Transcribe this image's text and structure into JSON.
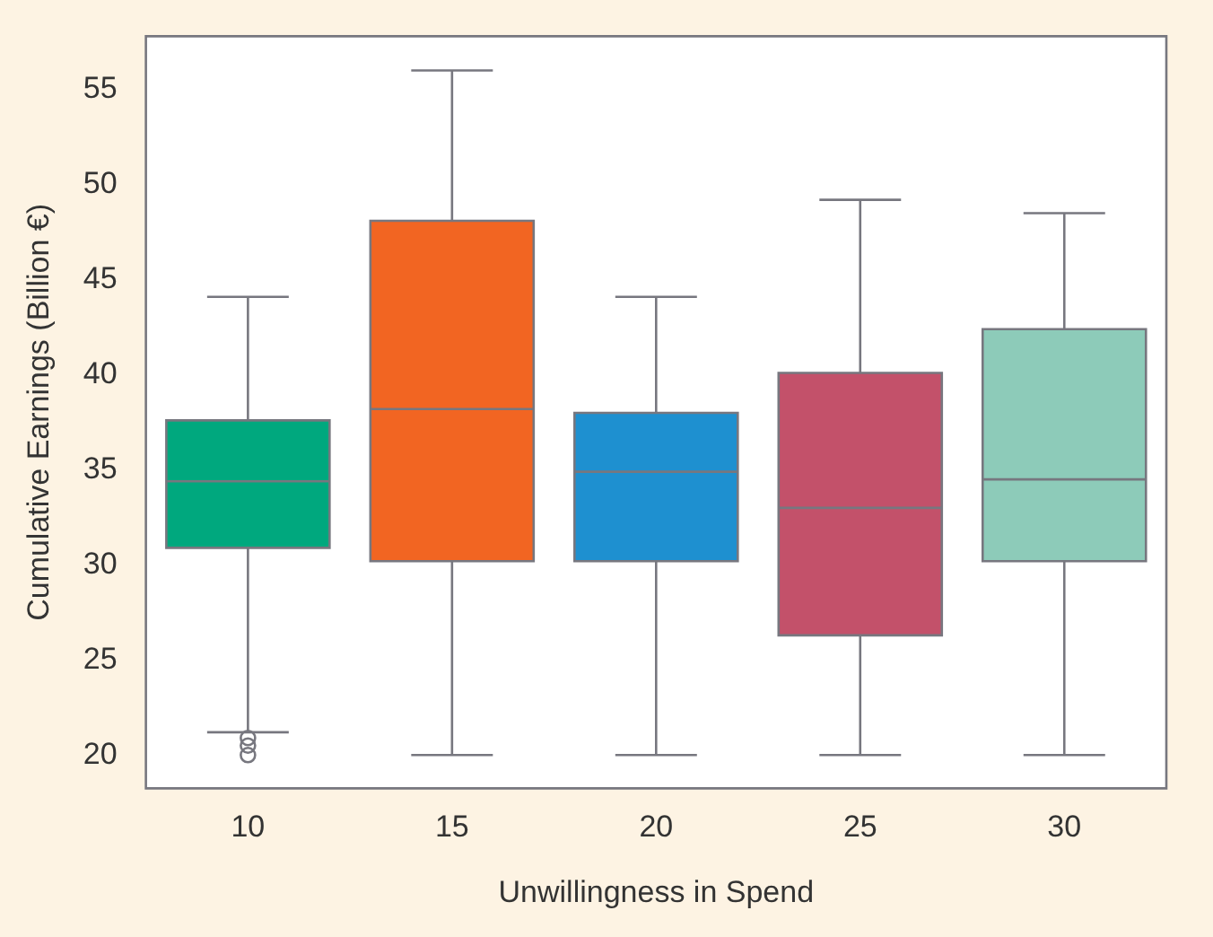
{
  "chart_data": {
    "type": "box",
    "xlabel": "Unwillingness in Spend",
    "ylabel": "Cumulative Earnings (Billion €)",
    "categories": [
      "10",
      "15",
      "20",
      "25",
      "30"
    ],
    "colors": [
      "#00a87e",
      "#f26522",
      "#1e90d0",
      "#c3516a",
      "#8dcbb9"
    ],
    "boxes": [
      {
        "low": 21.2,
        "q1": 30.9,
        "median": 34.4,
        "q3": 37.6,
        "high": 44.1,
        "outliers": [
          20.9,
          20.5,
          20.0
        ]
      },
      {
        "low": 20.0,
        "q1": 30.2,
        "median": 38.2,
        "q3": 48.1,
        "high": 56.0
      },
      {
        "low": 20.0,
        "q1": 30.2,
        "median": 34.9,
        "q3": 38.0,
        "high": 44.1
      },
      {
        "low": 20.0,
        "q1": 26.3,
        "median": 33.0,
        "q3": 40.1,
        "high": 49.2
      },
      {
        "low": 20.0,
        "q1": 30.2,
        "median": 34.5,
        "q3": 42.4,
        "high": 48.5
      }
    ],
    "ylim": [
      18.25,
      57.8
    ],
    "yticks": [
      20,
      25,
      30,
      35,
      40,
      45,
      50,
      55
    ],
    "grid": false,
    "legend": false
  }
}
